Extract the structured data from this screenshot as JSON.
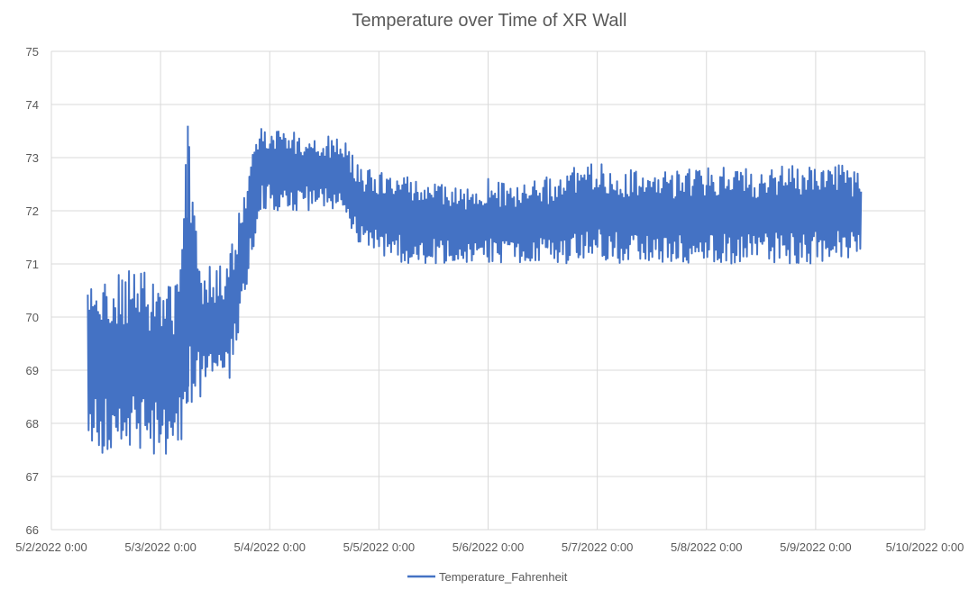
{
  "chart_data": {
    "type": "line",
    "title": "Temperature over Time of XR Wall",
    "xlabel": "",
    "ylabel": "",
    "y_ticks": [
      "66",
      "67",
      "68",
      "69",
      "70",
      "71",
      "72",
      "73",
      "74",
      "75"
    ],
    "ylim": [
      66,
      75
    ],
    "x_ticks": [
      "5/2/2022 0:00",
      "5/3/2022 0:00",
      "5/4/2022 0:00",
      "5/5/2022 0:00",
      "5/6/2022 0:00",
      "5/7/2022 0:00",
      "5/8/2022 0:00",
      "5/9/2022 0:00",
      "5/10/2022 0:00"
    ],
    "xlim": [
      "2022-05-02T00:00",
      "2022-05-10T00:00"
    ],
    "grid": true,
    "legend_position": "bottom",
    "series_color": "#4472C4",
    "series": [
      {
        "name": "Temperature_Fahrenheit",
        "x": [
          "2022-05-02T08:00",
          "2022-05-02T18:00",
          "2022-05-03T04:00",
          "2022-05-03T06:00",
          "2022-05-03T09:00",
          "2022-05-03T12:00",
          "2022-05-03T15:00",
          "2022-05-03T18:00",
          "2022-05-03T22:00",
          "2022-05-04T06:00",
          "2022-05-04T12:00",
          "2022-05-04T16:00",
          "2022-05-04T20:00",
          "2022-05-05T06:00",
          "2022-05-05T12:00",
          "2022-05-05T18:00",
          "2022-05-06T00:00",
          "2022-05-06T06:00",
          "2022-05-06T12:00",
          "2022-05-06T18:00",
          "2022-05-07T00:00",
          "2022-05-07T06:00",
          "2022-05-07T12:00",
          "2022-05-07T18:00",
          "2022-05-08T00:00",
          "2022-05-08T06:00",
          "2022-05-08T12:00",
          "2022-05-08T18:00",
          "2022-05-09T00:00",
          "2022-05-09T06:00",
          "2022-05-09T10:00"
        ],
        "y": [
          68.8,
          69.2,
          69.0,
          73.6,
          69.4,
          69.8,
          70.0,
          71.4,
          72.6,
          72.8,
          72.6,
          72.5,
          72.4,
          72.0,
          71.9,
          71.8,
          71.6,
          71.6,
          71.5,
          71.7,
          71.8,
          71.9,
          71.8,
          71.7,
          71.7,
          71.8,
          71.8,
          71.9,
          71.8,
          71.9,
          71.8
        ],
        "range_low": [
          67.4,
          67.5,
          67.3,
          68.4,
          68.4,
          68.7,
          68.7,
          70.0,
          72.0,
          72.0,
          72.0,
          72.0,
          71.3,
          71.0,
          71.0,
          71.0,
          71.0,
          71.0,
          71.0,
          71.0,
          71.1,
          71.0,
          71.0,
          71.0,
          71.0,
          71.0,
          71.0,
          71.0,
          71.0,
          71.1,
          71.1
        ],
        "range_high": [
          70.7,
          70.9,
          70.7,
          73.6,
          71.1,
          70.9,
          71.1,
          72.3,
          73.7,
          73.5,
          73.4,
          73.4,
          72.8,
          72.7,
          72.6,
          72.4,
          72.6,
          72.5,
          72.6,
          72.8,
          72.9,
          72.8,
          72.7,
          72.8,
          72.8,
          72.9,
          72.8,
          72.9,
          72.9,
          72.9,
          72.7
        ]
      }
    ]
  }
}
